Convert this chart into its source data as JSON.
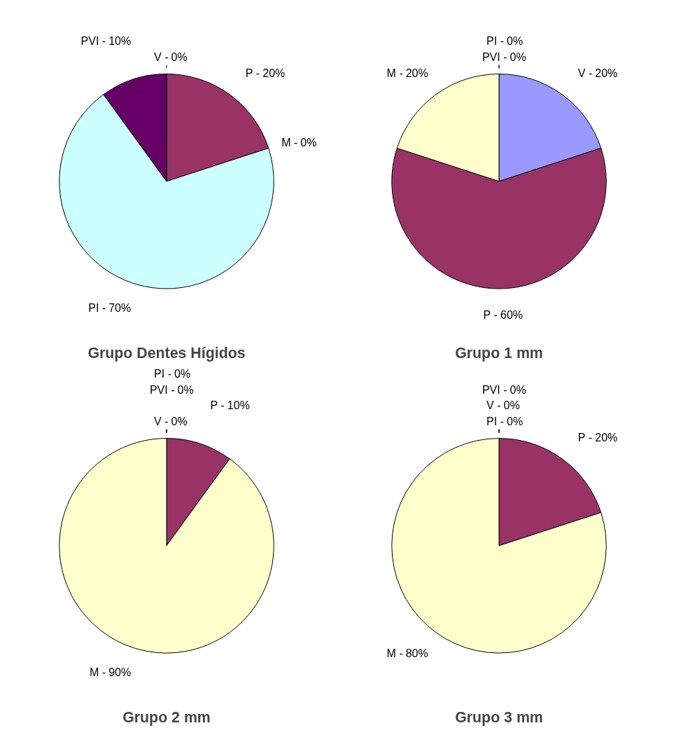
{
  "chart_data": [
    {
      "type": "pie",
      "title": "Grupo Dentes Hígidos",
      "categories": [
        "V -",
        "P -",
        "M -",
        "PI -",
        "PVI -"
      ],
      "values": [
        0,
        20,
        0,
        70,
        10
      ],
      "colors": [
        "#9999ff",
        "#993366",
        "#ffffcc",
        "#ccffff",
        "#660066"
      ],
      "value_labels": [
        "0%",
        "20%",
        "0%",
        "70%",
        "10%"
      ],
      "legend": false
    },
    {
      "type": "pie",
      "title": "Grupo 1 mm",
      "categories": [
        "V -",
        "P -",
        "M -",
        "PVI -",
        "PI -"
      ],
      "values": [
        20,
        60,
        20,
        0,
        0
      ],
      "colors": [
        "#9999ff",
        "#993366",
        "#ffffcc",
        "#660066",
        "#ccffff"
      ],
      "value_labels": [
        "20%",
        "60%",
        "20%",
        "0%",
        "0%"
      ],
      "legend": false
    },
    {
      "type": "pie",
      "title": "Grupo 2 mm",
      "categories": [
        "V -",
        "P -",
        "M -",
        "PVI -",
        "PI -"
      ],
      "values": [
        0,
        10,
        90,
        0,
        0
      ],
      "colors": [
        "#9999ff",
        "#993366",
        "#ffffcc",
        "#660066",
        "#ccffff"
      ],
      "value_labels": [
        "0%",
        "10%",
        "90%",
        "0%",
        "0%"
      ],
      "legend": false
    },
    {
      "type": "pie",
      "title": "Grupo 3 mm",
      "categories": [
        "PI -",
        "P -",
        "M -",
        "V -",
        "PVI -"
      ],
      "values": [
        0,
        20,
        80,
        0,
        0
      ],
      "colors": [
        "#ccffff",
        "#993366",
        "#ffffcc",
        "#9999ff",
        "#660066"
      ],
      "value_labels": [
        "0%",
        "20%",
        "80%",
        "0%",
        "0%"
      ],
      "legend": false
    }
  ]
}
